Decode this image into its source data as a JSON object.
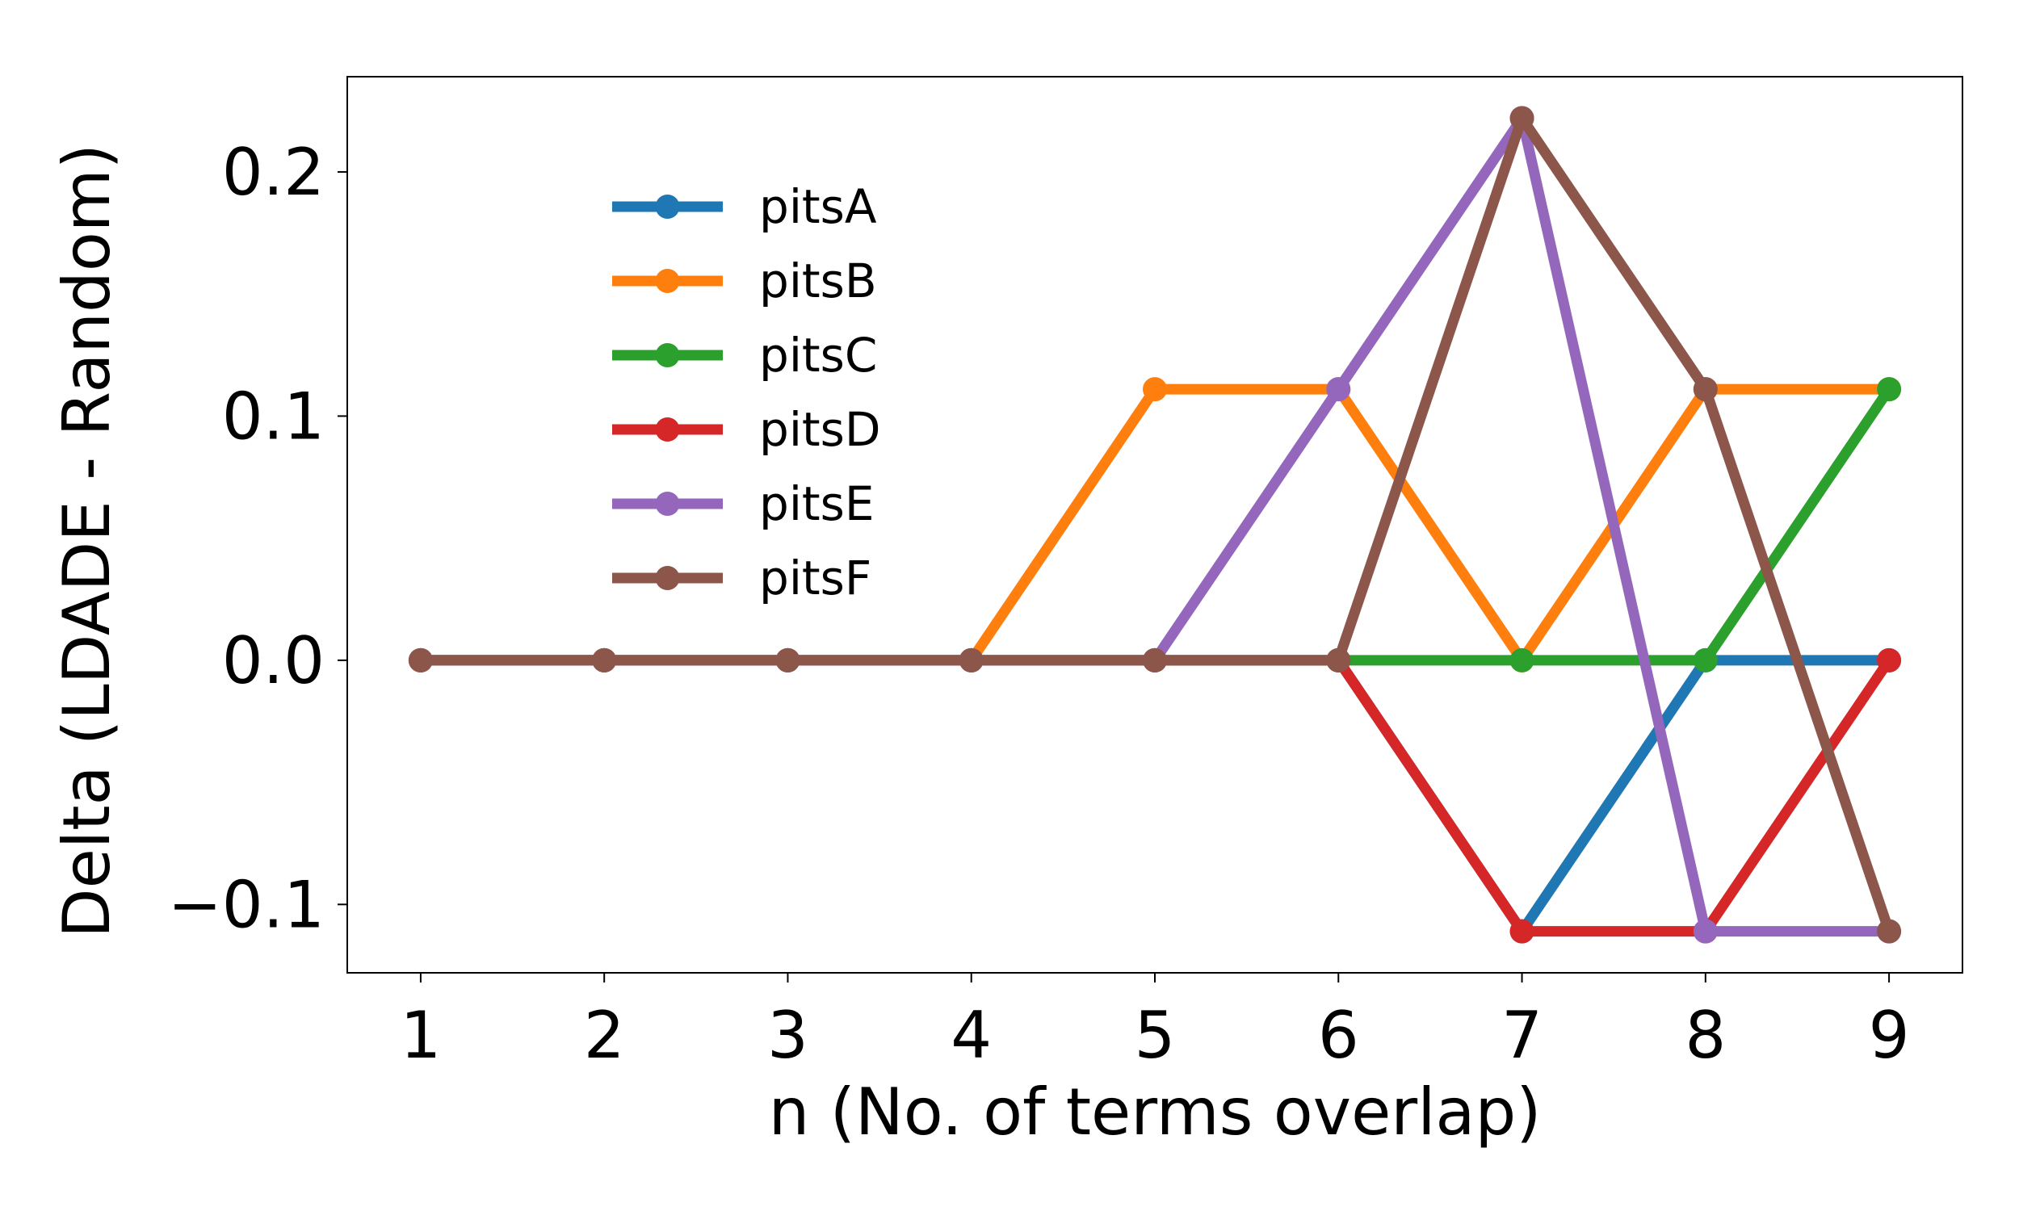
{
  "chart_data": {
    "type": "line",
    "title": "",
    "xlabel": "n (No. of terms overlap)",
    "ylabel": "Delta (LDADE - Random)",
    "x": [
      1,
      2,
      3,
      4,
      5,
      6,
      7,
      8,
      9
    ],
    "xlim": [
      0.6,
      9.4
    ],
    "ylim": [
      -0.128,
      0.239
    ],
    "xticks": [
      1,
      2,
      3,
      4,
      5,
      6,
      7,
      8,
      9
    ],
    "xtick_labels": [
      "1",
      "2",
      "3",
      "4",
      "5",
      "6",
      "7",
      "8",
      "9"
    ],
    "yticks": [
      -0.1,
      0.0,
      0.1,
      0.2
    ],
    "ytick_labels": [
      "−0.1",
      "0.0",
      "0.1",
      "0.2"
    ],
    "grid": false,
    "legend_position": "upper-left",
    "series": [
      {
        "name": "pitsA",
        "color": "#1f77b4",
        "values": [
          0,
          0,
          0,
          0,
          0,
          0,
          -0.111,
          0,
          0
        ]
      },
      {
        "name": "pitsB",
        "color": "#ff7f0e",
        "values": [
          0,
          0,
          0,
          0,
          0.111,
          0.111,
          0,
          0.111,
          0.111
        ]
      },
      {
        "name": "pitsC",
        "color": "#2ca02c",
        "values": [
          0,
          0,
          0,
          0,
          0,
          0,
          0,
          0,
          0.111
        ]
      },
      {
        "name": "pitsD",
        "color": "#d62728",
        "values": [
          0,
          0,
          0,
          0,
          0,
          0,
          -0.111,
          -0.111,
          0
        ]
      },
      {
        "name": "pitsE",
        "color": "#9467bd",
        "values": [
          0,
          0,
          0,
          0,
          0,
          0.111,
          0.222,
          -0.111,
          -0.111
        ]
      },
      {
        "name": "pitsF",
        "color": "#8c564b",
        "values": [
          0,
          0,
          0,
          0,
          0,
          0,
          0.222,
          0.111,
          -0.111
        ]
      }
    ]
  }
}
